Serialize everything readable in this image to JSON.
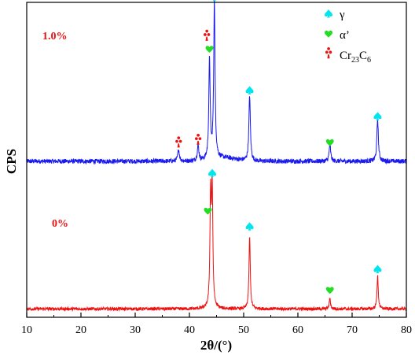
{
  "chart_data": {
    "type": "line",
    "title": "",
    "xlabel": "2θ/(°)",
    "ylabel": "CPS",
    "xlim": [
      10,
      80
    ],
    "xticks": [
      10,
      20,
      30,
      40,
      50,
      60,
      70,
      80
    ],
    "yticks": [],
    "grid": false,
    "legend_position": "top-right",
    "legend": [
      {
        "symbol": "spade",
        "color": "#00e5ee",
        "label": "γ",
        "sub": ""
      },
      {
        "symbol": "heart",
        "color": "#22dd22",
        "label": "α’",
        "sub": ""
      },
      {
        "symbol": "club",
        "color": "#ee1111",
        "label": "Cr",
        "sub": "23",
        "label2": "C",
        "sub2": "6"
      }
    ],
    "series": [
      {
        "name": "1.0%",
        "color": "#1a1aee",
        "baseline": 0.9,
        "noise": 0.26,
        "peaks": [
          {
            "x": 38.0,
            "h": 1.3,
            "w": 0.18
          },
          {
            "x": 41.6,
            "h": 1.7,
            "w": 0.18
          },
          {
            "x": 43.7,
            "h": 11.2,
            "w": 0.15
          },
          {
            "x": 44.6,
            "h": 17.7,
            "w": 0.15
          },
          {
            "x": 51.1,
            "h": 7.4,
            "w": 0.16
          },
          {
            "x": 65.9,
            "h": 2.0,
            "w": 0.16
          },
          {
            "x": 74.7,
            "h": 4.8,
            "w": 0.16
          }
        ],
        "markers": [
          {
            "x": 38.0,
            "symbol": "club",
            "color": "#ee1111",
            "h": 2.9
          },
          {
            "x": 41.6,
            "symbol": "club",
            "color": "#ee1111",
            "h": 3.2
          },
          {
            "x": 43.2,
            "symbol": "club",
            "color": "#ee1111",
            "h": 14.9
          },
          {
            "x": 43.7,
            "symbol": "heart",
            "color": "#22dd22",
            "h": 13.5
          },
          {
            "x": 44.6,
            "symbol": "spade",
            "color": "#00e5ee",
            "h": 19.4
          },
          {
            "x": 51.1,
            "symbol": "spade",
            "color": "#00e5ee",
            "h": 8.9
          },
          {
            "x": 65.9,
            "symbol": "heart",
            "color": "#22dd22",
            "h": 3.0
          },
          {
            "x": 74.7,
            "symbol": "spade",
            "color": "#00e5ee",
            "h": 6.0
          }
        ]
      },
      {
        "name": "0%",
        "color": "#ee1111",
        "baseline": 0.5,
        "noise": 0.18,
        "peaks": [
          {
            "x": 43.9,
            "h": 12.2,
            "w": 0.14
          },
          {
            "x": 44.2,
            "h": 13.0,
            "w": 0.14
          },
          {
            "x": 51.1,
            "h": 8.2,
            "w": 0.14
          },
          {
            "x": 65.9,
            "h": 1.2,
            "w": 0.14
          },
          {
            "x": 74.7,
            "h": 3.7,
            "w": 0.14
          }
        ],
        "markers": [
          {
            "x": 43.4,
            "symbol": "heart",
            "color": "#22dd22",
            "h": 11.5
          },
          {
            "x": 44.2,
            "symbol": "spade",
            "color": "#00e5ee",
            "h": 15.8
          },
          {
            "x": 51.1,
            "symbol": "spade",
            "color": "#00e5ee",
            "h": 9.8
          },
          {
            "x": 65.9,
            "symbol": "heart",
            "color": "#22dd22",
            "h": 2.6
          },
          {
            "x": 74.7,
            "symbol": "spade",
            "color": "#00e5ee",
            "h": 5.0
          }
        ]
      }
    ]
  }
}
